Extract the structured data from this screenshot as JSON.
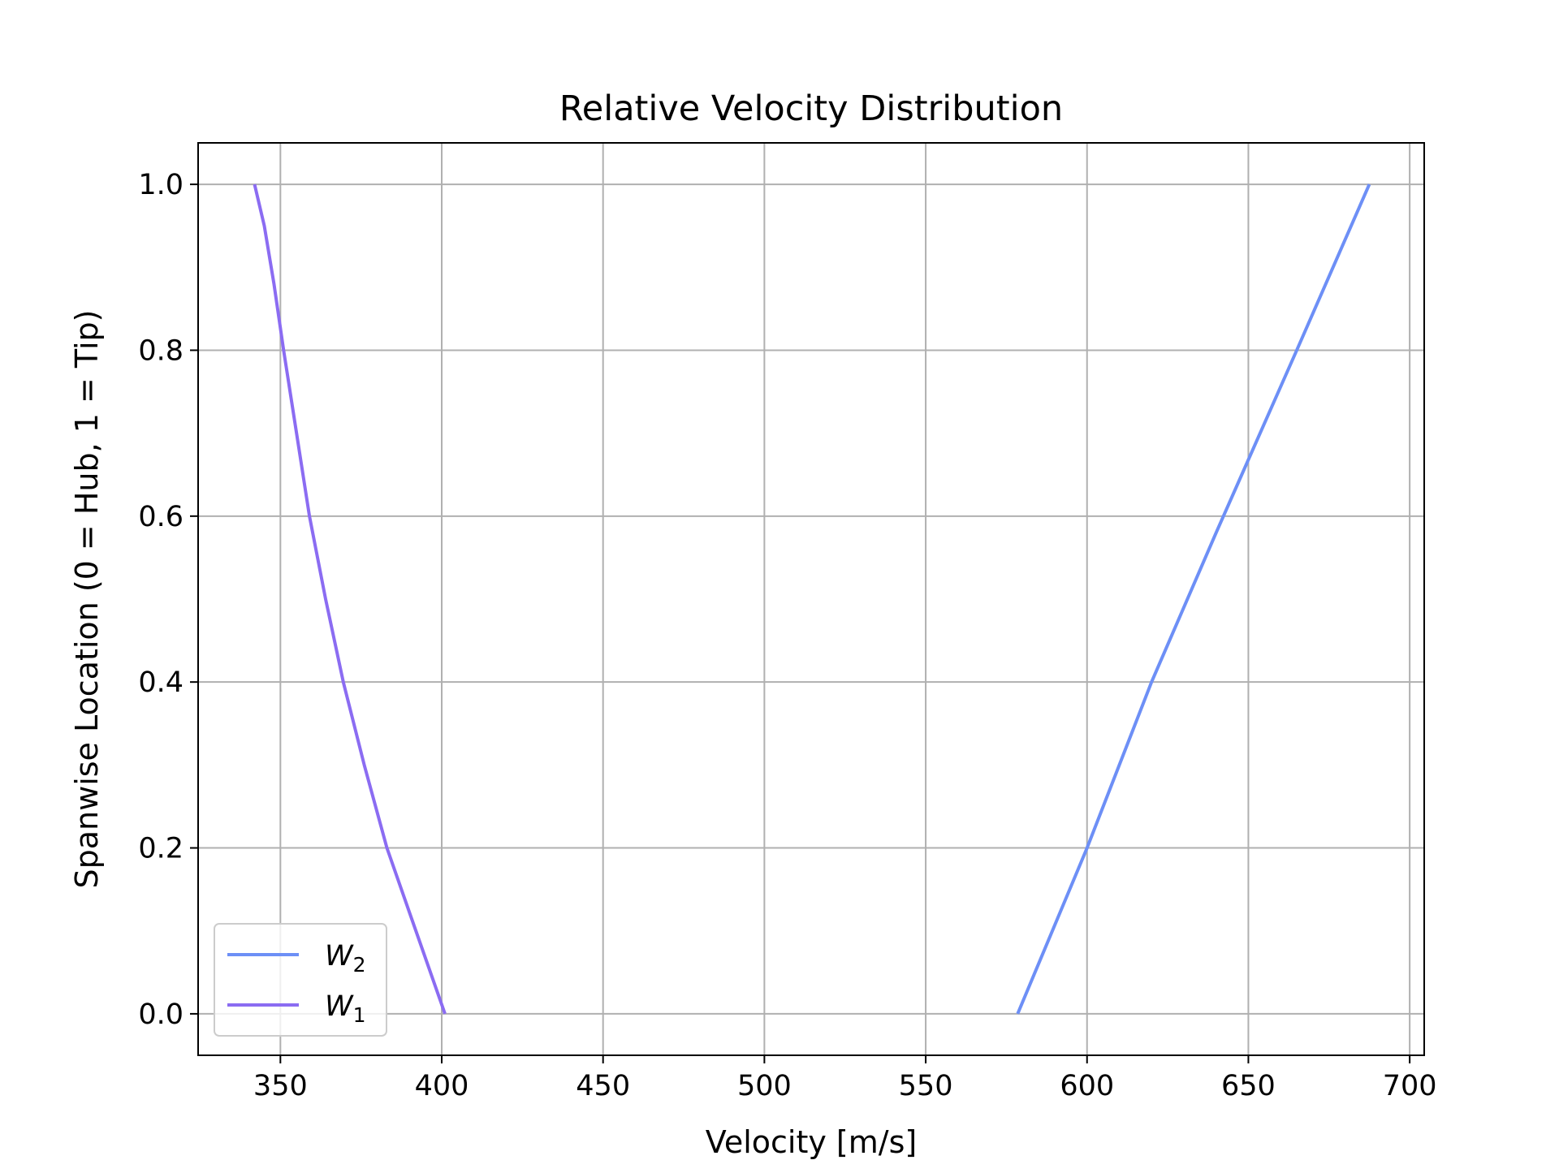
{
  "chart_data": {
    "type": "line",
    "title": "Relative Velocity Distribution",
    "xlabel": "Velocity [m/s]",
    "ylabel": "Spanwise Location (0 = Hub, 1 = Tip)",
    "xlim": [
      324.5,
      704.5
    ],
    "ylim": [
      -0.05,
      1.05
    ],
    "xticks": [
      350,
      400,
      450,
      500,
      550,
      600,
      650,
      700
    ],
    "yticks": [
      0.0,
      0.2,
      0.4,
      0.6,
      0.8,
      1.0
    ],
    "xtick_labels": [
      "350",
      "400",
      "450",
      "500",
      "550",
      "600",
      "650",
      "700"
    ],
    "ytick_labels": [
      "0.0",
      "0.2",
      "0.4",
      "0.6",
      "0.8",
      "1.0"
    ],
    "grid": true,
    "legend_position": "lower-left",
    "series": [
      {
        "name": "W",
        "subscript": "2",
        "color": "#6d8ff6",
        "x": [
          578.5,
          600,
          620,
          640,
          665,
          687.5
        ],
        "y": [
          0.0,
          0.2,
          0.4,
          0.58,
          0.8,
          1.0
        ]
      },
      {
        "name": "W",
        "subscript": "1",
        "color": "#8b6cf2",
        "x": [
          401.0,
          392.0,
          383.0,
          376.0,
          369.5,
          364.0,
          359.0,
          355.0,
          351.0,
          348.0,
          345.0,
          342.0
        ],
        "y": [
          0.0,
          0.1,
          0.2,
          0.3,
          0.4,
          0.5,
          0.6,
          0.7,
          0.8,
          0.88,
          0.95,
          1.0
        ]
      }
    ]
  }
}
